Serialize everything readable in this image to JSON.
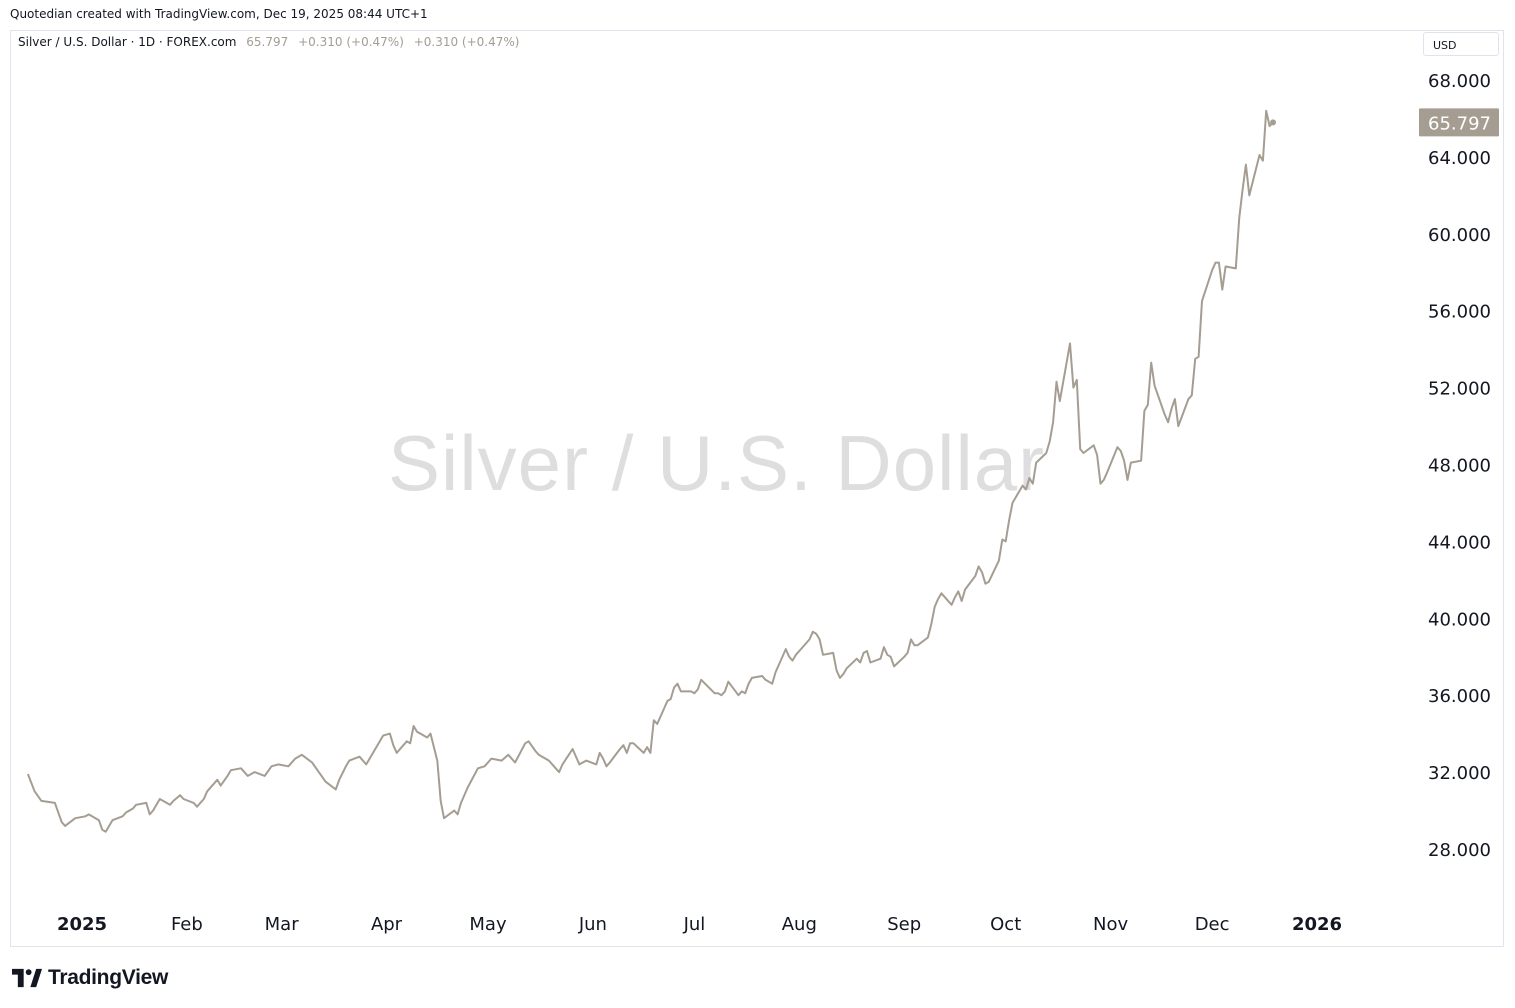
{
  "header": {
    "credit": "Quotedian created with TradingView.com, Dec 19, 2025 08:44 UTC+1"
  },
  "legend": {
    "symbol": "Silver / U.S. Dollar · 1D · FOREX.com",
    "last": "65.797",
    "change1": "+0.310 (+0.47%)",
    "change2": "+0.310 (+0.47%)"
  },
  "currency": "USD",
  "watermark": "Silver / U.S. Dollar",
  "footer": {
    "brand": "TradingView",
    "logo_icon": "tradingview-logo-icon"
  },
  "colors": {
    "line": "#a59d92",
    "price_label_bg": "#a59d92"
  },
  "chart_data": {
    "type": "line",
    "title": "Silver / U.S. Dollar",
    "subtitle": "1D · FOREX.com",
    "last_price": 65.797,
    "last_price_label": "65.797",
    "y_axis": {
      "position": "right",
      "range": [
        26,
        72
      ],
      "ticks": [
        28,
        32,
        36,
        40,
        44,
        48,
        52,
        56,
        60,
        64,
        68
      ],
      "tick_labels": [
        "28.000",
        "32.000",
        "36.000",
        "40.000",
        "44.000",
        "48.000",
        "52.000",
        "56.000",
        "60.000",
        "64.000",
        "68.000"
      ]
    },
    "x_axis": {
      "range": [
        "2024-12-16",
        "2026-01-31"
      ],
      "ticks": [
        {
          "date": "2025-01-01",
          "label": "2025",
          "major": true
        },
        {
          "date": "2025-02-01",
          "label": "Feb",
          "major": false
        },
        {
          "date": "2025-03-01",
          "label": "Mar",
          "major": false
        },
        {
          "date": "2025-04-01",
          "label": "Apr",
          "major": false
        },
        {
          "date": "2025-05-01",
          "label": "May",
          "major": false
        },
        {
          "date": "2025-06-01",
          "label": "Jun",
          "major": false
        },
        {
          "date": "2025-07-01",
          "label": "Jul",
          "major": false
        },
        {
          "date": "2025-08-01",
          "label": "Aug",
          "major": false
        },
        {
          "date": "2025-09-01",
          "label": "Sep",
          "major": false
        },
        {
          "date": "2025-10-01",
          "label": "Oct",
          "major": false
        },
        {
          "date": "2025-11-01",
          "label": "Nov",
          "major": false
        },
        {
          "date": "2025-12-01",
          "label": "Dec",
          "major": false
        },
        {
          "date": "2026-01-01",
          "label": "2026",
          "major": true
        }
      ]
    },
    "grid": false,
    "series": [
      {
        "points": [
          [
            "2024-12-16",
            31.9
          ],
          [
            "2024-12-18",
            31.0
          ],
          [
            "2024-12-20",
            30.5
          ],
          [
            "2024-12-24",
            30.4
          ],
          [
            "2024-12-26",
            29.4
          ],
          [
            "2024-12-27",
            29.2
          ],
          [
            "2024-12-30",
            29.6
          ],
          [
            "2025-01-02",
            29.7
          ],
          [
            "2025-01-03",
            29.8
          ],
          [
            "2025-01-06",
            29.5
          ],
          [
            "2025-01-07",
            29.0
          ],
          [
            "2025-01-08",
            28.9
          ],
          [
            "2025-01-10",
            29.5
          ],
          [
            "2025-01-13",
            29.7
          ],
          [
            "2025-01-14",
            29.9
          ],
          [
            "2025-01-16",
            30.1
          ],
          [
            "2025-01-17",
            30.3
          ],
          [
            "2025-01-20",
            30.4
          ],
          [
            "2025-01-21",
            29.8
          ],
          [
            "2025-01-22",
            30.0
          ],
          [
            "2025-01-24",
            30.6
          ],
          [
            "2025-01-27",
            30.3
          ],
          [
            "2025-01-28",
            30.5
          ],
          [
            "2025-01-30",
            30.8
          ],
          [
            "2025-01-31",
            30.6
          ],
          [
            "2025-02-03",
            30.4
          ],
          [
            "2025-02-04",
            30.2
          ],
          [
            "2025-02-06",
            30.6
          ],
          [
            "2025-02-07",
            31.0
          ],
          [
            "2025-02-10",
            31.6
          ],
          [
            "2025-02-11",
            31.3
          ],
          [
            "2025-02-13",
            31.8
          ],
          [
            "2025-02-14",
            32.1
          ],
          [
            "2025-02-17",
            32.2
          ],
          [
            "2025-02-19",
            31.8
          ],
          [
            "2025-02-21",
            32.0
          ],
          [
            "2025-02-24",
            31.8
          ],
          [
            "2025-02-26",
            32.3
          ],
          [
            "2025-02-28",
            32.4
          ],
          [
            "2025-03-03",
            32.3
          ],
          [
            "2025-03-05",
            32.7
          ],
          [
            "2025-03-07",
            32.9
          ],
          [
            "2025-03-10",
            32.5
          ],
          [
            "2025-03-12",
            32.0
          ],
          [
            "2025-03-14",
            31.5
          ],
          [
            "2025-03-17",
            31.1
          ],
          [
            "2025-03-18",
            31.6
          ],
          [
            "2025-03-20",
            32.3
          ],
          [
            "2025-03-21",
            32.6
          ],
          [
            "2025-03-24",
            32.8
          ],
          [
            "2025-03-26",
            32.4
          ],
          [
            "2025-03-28",
            33.0
          ],
          [
            "2025-03-31",
            33.9
          ],
          [
            "2025-04-02",
            34.0
          ],
          [
            "2025-04-03",
            33.4
          ],
          [
            "2025-04-04",
            33.0
          ],
          [
            "2025-04-07",
            33.6
          ],
          [
            "2025-04-08",
            33.5
          ],
          [
            "2025-04-09",
            34.4
          ],
          [
            "2025-04-10",
            34.1
          ],
          [
            "2025-04-11",
            34.0
          ],
          [
            "2025-04-13",
            33.8
          ],
          [
            "2025-04-14",
            34.0
          ],
          [
            "2025-04-16",
            32.6
          ],
          [
            "2025-04-17",
            30.5
          ],
          [
            "2025-04-18",
            29.6
          ],
          [
            "2025-04-21",
            30.0
          ],
          [
            "2025-04-22",
            29.8
          ],
          [
            "2025-04-23",
            30.4
          ],
          [
            "2025-04-25",
            31.2
          ],
          [
            "2025-04-28",
            32.2
          ],
          [
            "2025-04-30",
            32.3
          ],
          [
            "2025-05-02",
            32.7
          ],
          [
            "2025-05-05",
            32.6
          ],
          [
            "2025-05-07",
            32.9
          ],
          [
            "2025-05-09",
            32.5
          ],
          [
            "2025-05-12",
            33.5
          ],
          [
            "2025-05-13",
            33.6
          ],
          [
            "2025-05-15",
            33.1
          ],
          [
            "2025-05-16",
            32.9
          ],
          [
            "2025-05-19",
            32.6
          ],
          [
            "2025-05-21",
            32.2
          ],
          [
            "2025-05-22",
            32.0
          ],
          [
            "2025-05-23",
            32.4
          ],
          [
            "2025-05-26",
            33.2
          ],
          [
            "2025-05-28",
            32.4
          ],
          [
            "2025-05-30",
            32.6
          ],
          [
            "2025-06-02",
            32.4
          ],
          [
            "2025-06-03",
            33.0
          ],
          [
            "2025-06-04",
            32.7
          ],
          [
            "2025-06-05",
            32.3
          ],
          [
            "2025-06-06",
            32.5
          ],
          [
            "2025-06-09",
            33.2
          ],
          [
            "2025-06-10",
            33.4
          ],
          [
            "2025-06-11",
            33.0
          ],
          [
            "2025-06-12",
            33.5
          ],
          [
            "2025-06-13",
            33.5
          ],
          [
            "2025-06-16",
            33.0
          ],
          [
            "2025-06-17",
            33.3
          ],
          [
            "2025-06-18",
            33.0
          ],
          [
            "2025-06-19",
            34.7
          ],
          [
            "2025-06-20",
            34.5
          ],
          [
            "2025-06-23",
            35.7
          ],
          [
            "2025-06-24",
            35.8
          ],
          [
            "2025-06-25",
            36.4
          ],
          [
            "2025-06-26",
            36.6
          ],
          [
            "2025-06-27",
            36.2
          ],
          [
            "2025-06-30",
            36.2
          ],
          [
            "2025-07-01",
            36.1
          ],
          [
            "2025-07-02",
            36.3
          ],
          [
            "2025-07-03",
            36.8
          ],
          [
            "2025-07-07",
            36.1
          ],
          [
            "2025-07-08",
            36.1
          ],
          [
            "2025-07-09",
            36.0
          ],
          [
            "2025-07-10",
            36.2
          ],
          [
            "2025-07-11",
            36.7
          ],
          [
            "2025-07-14",
            36.0
          ],
          [
            "2025-07-15",
            36.2
          ],
          [
            "2025-07-16",
            36.1
          ],
          [
            "2025-07-17",
            36.6
          ],
          [
            "2025-07-18",
            36.9
          ],
          [
            "2025-07-21",
            37.0
          ],
          [
            "2025-07-22",
            36.8
          ],
          [
            "2025-07-23",
            36.7
          ],
          [
            "2025-07-24",
            36.6
          ],
          [
            "2025-07-25",
            37.2
          ],
          [
            "2025-07-28",
            38.4
          ],
          [
            "2025-07-29",
            38.0
          ],
          [
            "2025-07-30",
            37.8
          ],
          [
            "2025-07-31",
            38.1
          ],
          [
            "2025-08-01",
            38.3
          ],
          [
            "2025-08-04",
            38.9
          ],
          [
            "2025-08-05",
            39.3
          ],
          [
            "2025-08-06",
            39.2
          ],
          [
            "2025-08-07",
            38.9
          ],
          [
            "2025-08-08",
            38.1
          ],
          [
            "2025-08-11",
            38.2
          ],
          [
            "2025-08-12",
            37.3
          ],
          [
            "2025-08-13",
            36.9
          ],
          [
            "2025-08-14",
            37.1
          ],
          [
            "2025-08-15",
            37.4
          ],
          [
            "2025-08-18",
            37.9
          ],
          [
            "2025-08-19",
            37.7
          ],
          [
            "2025-08-20",
            38.2
          ],
          [
            "2025-08-21",
            38.3
          ],
          [
            "2025-08-22",
            37.7
          ],
          [
            "2025-08-25",
            37.9
          ],
          [
            "2025-08-26",
            38.5
          ],
          [
            "2025-08-27",
            38.1
          ],
          [
            "2025-08-28",
            38.0
          ],
          [
            "2025-08-29",
            37.5
          ],
          [
            "2025-09-01",
            38.0
          ],
          [
            "2025-09-02",
            38.2
          ],
          [
            "2025-09-03",
            38.9
          ],
          [
            "2025-09-04",
            38.6
          ],
          [
            "2025-09-05",
            38.6
          ],
          [
            "2025-09-08",
            39.0
          ],
          [
            "2025-09-09",
            39.7
          ],
          [
            "2025-09-10",
            40.6
          ],
          [
            "2025-09-11",
            41.0
          ],
          [
            "2025-09-12",
            41.3
          ],
          [
            "2025-09-15",
            40.7
          ],
          [
            "2025-09-16",
            41.1
          ],
          [
            "2025-09-17",
            41.4
          ],
          [
            "2025-09-18",
            40.9
          ],
          [
            "2025-09-19",
            41.5
          ],
          [
            "2025-09-22",
            42.2
          ],
          [
            "2025-09-23",
            42.7
          ],
          [
            "2025-09-24",
            42.4
          ],
          [
            "2025-09-25",
            41.8
          ],
          [
            "2025-09-26",
            41.9
          ],
          [
            "2025-09-29",
            43.0
          ],
          [
            "2025-09-30",
            44.1
          ],
          [
            "2025-10-01",
            44.0
          ],
          [
            "2025-10-02",
            45.1
          ],
          [
            "2025-10-03",
            46.0
          ],
          [
            "2025-10-06",
            46.9
          ],
          [
            "2025-10-07",
            46.7
          ],
          [
            "2025-10-08",
            47.3
          ],
          [
            "2025-10-09",
            47.0
          ],
          [
            "2025-10-10",
            48.1
          ],
          [
            "2025-10-13",
            48.6
          ],
          [
            "2025-10-14",
            49.2
          ],
          [
            "2025-10-15",
            50.2
          ],
          [
            "2025-10-16",
            52.3
          ],
          [
            "2025-10-17",
            51.3
          ],
          [
            "2025-10-20",
            54.3
          ],
          [
            "2025-10-21",
            52.0
          ],
          [
            "2025-10-22",
            52.4
          ],
          [
            "2025-10-23",
            48.8
          ],
          [
            "2025-10-24",
            48.6
          ],
          [
            "2025-10-27",
            49.0
          ],
          [
            "2025-10-28",
            48.5
          ],
          [
            "2025-10-29",
            47.0
          ],
          [
            "2025-10-30",
            47.2
          ],
          [
            "2025-10-31",
            47.6
          ],
          [
            "2025-11-03",
            48.9
          ],
          [
            "2025-11-04",
            48.7
          ],
          [
            "2025-11-05",
            48.2
          ],
          [
            "2025-11-06",
            47.2
          ],
          [
            "2025-11-07",
            48.1
          ],
          [
            "2025-11-10",
            48.2
          ],
          [
            "2025-11-11",
            50.8
          ],
          [
            "2025-11-12",
            51.1
          ],
          [
            "2025-11-13",
            53.3
          ],
          [
            "2025-11-14",
            52.1
          ],
          [
            "2025-11-17",
            50.6
          ],
          [
            "2025-11-18",
            50.2
          ],
          [
            "2025-11-19",
            50.9
          ],
          [
            "2025-11-20",
            51.4
          ],
          [
            "2025-11-21",
            50.0
          ],
          [
            "2025-11-24",
            51.4
          ],
          [
            "2025-11-25",
            51.6
          ],
          [
            "2025-11-26",
            53.5
          ],
          [
            "2025-11-27",
            53.6
          ],
          [
            "2025-11-28",
            56.5
          ],
          [
            "2025-12-01",
            58.1
          ],
          [
            "2025-12-02",
            58.5
          ],
          [
            "2025-12-03",
            58.5
          ],
          [
            "2025-12-04",
            57.1
          ],
          [
            "2025-12-05",
            58.3
          ],
          [
            "2025-12-08",
            58.2
          ],
          [
            "2025-12-09",
            60.8
          ],
          [
            "2025-12-10",
            62.3
          ],
          [
            "2025-12-11",
            63.6
          ],
          [
            "2025-12-12",
            62.0
          ],
          [
            "2025-12-15",
            64.1
          ],
          [
            "2025-12-16",
            63.8
          ],
          [
            "2025-12-17",
            66.4
          ],
          [
            "2025-12-18",
            65.6
          ],
          [
            "2025-12-19",
            65.797
          ]
        ]
      }
    ]
  }
}
